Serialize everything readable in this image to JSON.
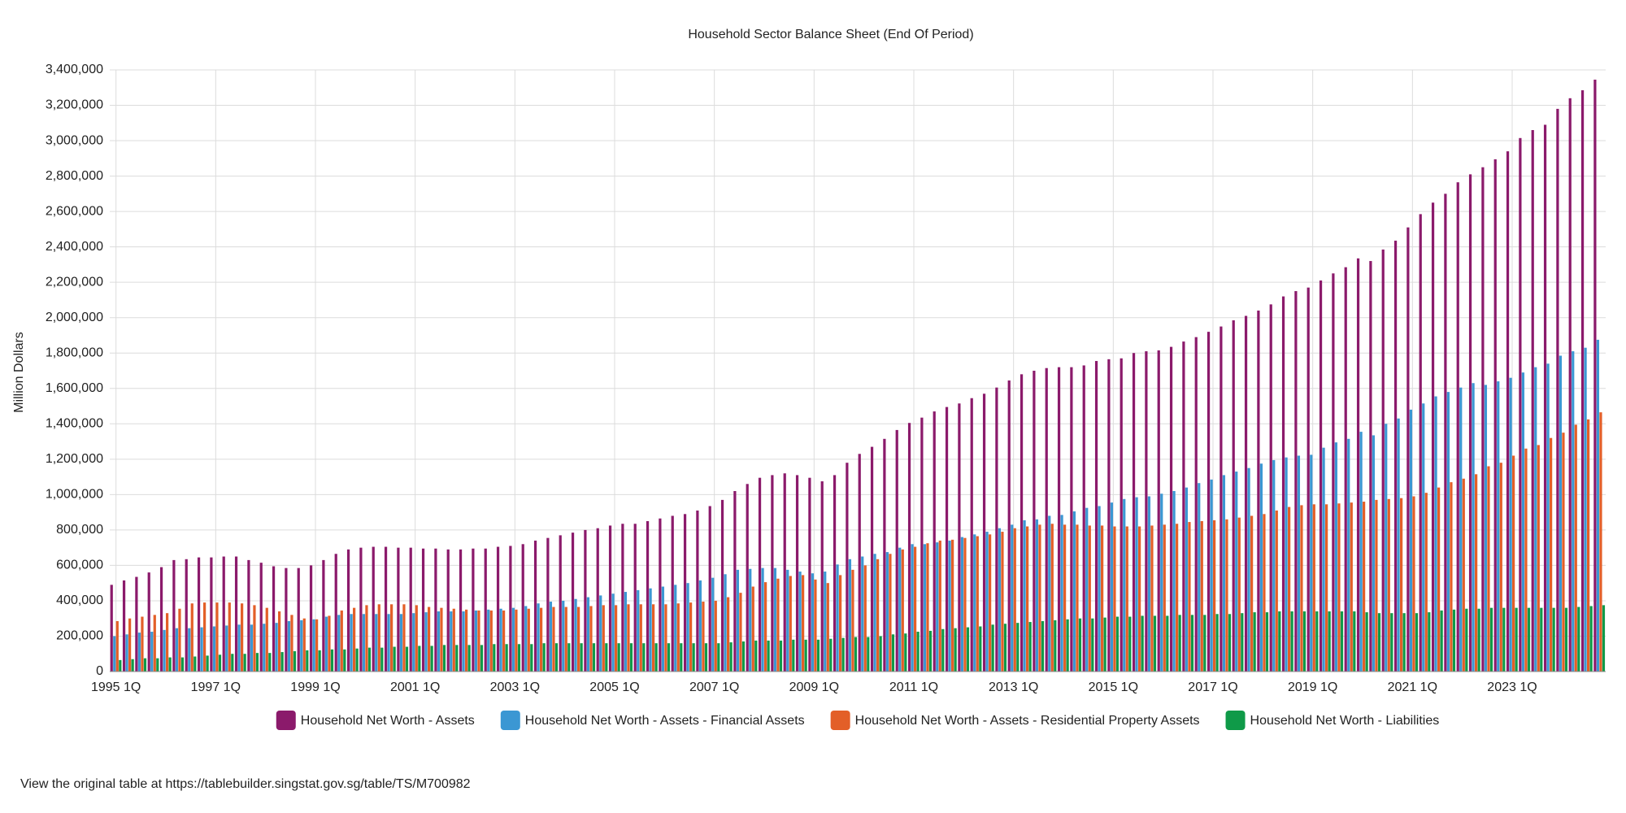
{
  "chart_data": {
    "type": "bar",
    "title": "Household Sector Balance Sheet (End Of Period)",
    "y_label": "Million Dollars",
    "source_note": "View the original table at https://tablebuilder.singstat.gov.sg/table/TS/M700982",
    "grid": true,
    "legend": "bottom",
    "categories": [
      "1995 1Q",
      null,
      null,
      null,
      null,
      null,
      null,
      null,
      "1997 1Q",
      null,
      null,
      null,
      null,
      null,
      null,
      null,
      "1999 1Q",
      null,
      null,
      null,
      null,
      null,
      null,
      null,
      "2001 1Q",
      null,
      null,
      null,
      null,
      null,
      null,
      null,
      "2003 1Q",
      null,
      null,
      null,
      null,
      null,
      null,
      null,
      "2005 1Q",
      null,
      null,
      null,
      null,
      null,
      null,
      null,
      "2007 1Q",
      null,
      null,
      null,
      null,
      null,
      null,
      null,
      "2009 1Q",
      null,
      null,
      null,
      null,
      null,
      null,
      null,
      "2011 1Q",
      null,
      null,
      null,
      null,
      null,
      null,
      null,
      "2013 1Q",
      null,
      null,
      null,
      null,
      null,
      null,
      null,
      "2015 1Q",
      null,
      null,
      null,
      null,
      null,
      null,
      null,
      "2017 1Q",
      null,
      null,
      null,
      null,
      null,
      null,
      null,
      "2019 1Q",
      null,
      null,
      null,
      null,
      null,
      null,
      null,
      "2021 1Q",
      null,
      null,
      null,
      null,
      null,
      null,
      null,
      "2023 1Q",
      null,
      null,
      null,
      null,
      null,
      null,
      null
    ],
    "ylim": [
      0,
      3400000
    ],
    "yticks": [
      0,
      {
        "value": 200000,
        "label": "200,000"
      },
      {
        "value": 400000,
        "label": "400,000"
      },
      {
        "value": 600000,
        "label": "600,000"
      },
      {
        "value": 800000,
        "label": "800,000"
      },
      {
        "value": 1000000,
        "label": "1,000,000"
      },
      {
        "value": 1200000,
        "label": "1,200,000"
      },
      {
        "value": 1400000,
        "label": "1,400,000"
      },
      {
        "value": 1600000,
        "label": "1,600,000"
      },
      {
        "value": 1800000,
        "label": "1,800,000"
      },
      {
        "value": 2000000,
        "label": "2,000,000"
      },
      {
        "value": 2200000,
        "label": "2,200,000"
      },
      {
        "value": 2400000,
        "label": "2,400,000"
      },
      {
        "value": 2600000,
        "label": "2,600,000"
      },
      {
        "value": 2800000,
        "label": "2,800,000"
      },
      {
        "value": 3000000,
        "label": "3,000,000"
      },
      {
        "value": 3200000,
        "label": "3,200,000"
      },
      {
        "value": 3400000,
        "label": "3,400,000"
      }
    ],
    "series": [
      {
        "name": "Household Net Worth - Assets",
        "color": "#8b1a6b",
        "values": [
          490000,
          515000,
          535000,
          560000,
          590000,
          630000,
          635000,
          645000,
          645000,
          650000,
          650000,
          630000,
          615000,
          595000,
          585000,
          585000,
          600000,
          630000,
          665000,
          690000,
          700000,
          705000,
          705000,
          700000,
          700000,
          695000,
          695000,
          690000,
          690000,
          695000,
          695000,
          705000,
          710000,
          720000,
          740000,
          755000,
          770000,
          785000,
          800000,
          810000,
          825000,
          835000,
          835000,
          850000,
          865000,
          880000,
          890000,
          910000,
          935000,
          970000,
          1020000,
          1060000,
          1095000,
          1110000,
          1120000,
          1110000,
          1095000,
          1075000,
          1110000,
          1180000,
          1230000,
          1270000,
          1315000,
          1365000,
          1405000,
          1435000,
          1470000,
          1495000,
          1515000,
          1545000,
          1570000,
          1605000,
          1645000,
          1680000,
          1700000,
          1715000,
          1720000,
          1720000,
          1730000,
          1755000,
          1765000,
          1770000,
          1800000,
          1810000,
          1815000,
          1835000,
          1865000,
          1890000,
          1920000,
          1950000,
          1985000,
          2010000,
          2040000,
          2075000,
          2120000,
          2150000,
          2170000,
          2210000,
          2250000,
          2285000,
          2335000,
          2320000,
          2385000,
          2435000,
          2510000,
          2585000,
          2650000,
          2700000,
          2765000,
          2810000,
          2850000,
          2895000,
          2940000,
          3015000,
          3060000,
          3090000,
          3180000,
          3240000,
          3285000,
          3345000
        ]
      },
      {
        "name": "Household Net Worth - Assets - Financial Assets",
        "color": "#3b97d3",
        "values": [
          200000,
          210000,
          220000,
          225000,
          235000,
          245000,
          245000,
          250000,
          255000,
          260000,
          265000,
          265000,
          270000,
          275000,
          285000,
          290000,
          295000,
          310000,
          320000,
          325000,
          325000,
          325000,
          325000,
          325000,
          330000,
          335000,
          340000,
          340000,
          340000,
          345000,
          350000,
          355000,
          360000,
          370000,
          385000,
          395000,
          400000,
          410000,
          420000,
          430000,
          440000,
          450000,
          460000,
          470000,
          480000,
          490000,
          500000,
          515000,
          530000,
          550000,
          575000,
          580000,
          585000,
          585000,
          575000,
          565000,
          555000,
          565000,
          605000,
          635000,
          650000,
          665000,
          675000,
          700000,
          720000,
          720000,
          730000,
          740000,
          760000,
          775000,
          790000,
          810000,
          830000,
          855000,
          860000,
          880000,
          885000,
          905000,
          925000,
          935000,
          955000,
          975000,
          985000,
          990000,
          1005000,
          1020000,
          1040000,
          1065000,
          1085000,
          1110000,
          1130000,
          1150000,
          1175000,
          1195000,
          1210000,
          1220000,
          1225000,
          1265000,
          1295000,
          1315000,
          1355000,
          1335000,
          1400000,
          1430000,
          1480000,
          1515000,
          1555000,
          1580000,
          1605000,
          1630000,
          1620000,
          1640000,
          1660000,
          1690000,
          1720000,
          1740000,
          1785000,
          1810000,
          1830000,
          1875000
        ]
      },
      {
        "name": "Household Net Worth - Assets - Residential Property Assets",
        "color": "#e35f28",
        "values": [
          285000,
          300000,
          310000,
          320000,
          330000,
          355000,
          385000,
          390000,
          390000,
          390000,
          385000,
          375000,
          360000,
          340000,
          320000,
          300000,
          295000,
          315000,
          345000,
          360000,
          375000,
          380000,
          380000,
          380000,
          375000,
          365000,
          360000,
          355000,
          350000,
          345000,
          345000,
          345000,
          350000,
          355000,
          360000,
          365000,
          365000,
          365000,
          370000,
          375000,
          375000,
          380000,
          380000,
          380000,
          380000,
          385000,
          390000,
          395000,
          400000,
          420000,
          445000,
          480000,
          505000,
          525000,
          540000,
          545000,
          520000,
          500000,
          545000,
          575000,
          600000,
          635000,
          665000,
          690000,
          705000,
          725000,
          740000,
          745000,
          755000,
          765000,
          775000,
          790000,
          810000,
          820000,
          830000,
          835000,
          830000,
          830000,
          825000,
          825000,
          820000,
          820000,
          820000,
          825000,
          830000,
          835000,
          845000,
          850000,
          855000,
          860000,
          870000,
          880000,
          890000,
          910000,
          930000,
          940000,
          945000,
          945000,
          950000,
          955000,
          960000,
          970000,
          975000,
          980000,
          990000,
          1010000,
          1040000,
          1070000,
          1090000,
          1115000,
          1160000,
          1180000,
          1220000,
          1260000,
          1280000,
          1320000,
          1350000,
          1395000,
          1425000,
          1465000
        ]
      },
      {
        "name": "Household Net Worth - Liabilities",
        "color": "#0f9a48",
        "values": [
          65000,
          70000,
          75000,
          75000,
          80000,
          80000,
          85000,
          90000,
          95000,
          100000,
          100000,
          105000,
          105000,
          110000,
          115000,
          120000,
          120000,
          125000,
          125000,
          130000,
          135000,
          135000,
          140000,
          140000,
          145000,
          145000,
          150000,
          150000,
          150000,
          150000,
          155000,
          155000,
          155000,
          155000,
          160000,
          160000,
          160000,
          160000,
          160000,
          160000,
          160000,
          160000,
          160000,
          160000,
          160000,
          160000,
          160000,
          160000,
          160000,
          165000,
          170000,
          175000,
          175000,
          175000,
          180000,
          180000,
          180000,
          185000,
          190000,
          195000,
          195000,
          200000,
          210000,
          215000,
          225000,
          230000,
          240000,
          245000,
          250000,
          255000,
          265000,
          270000,
          275000,
          280000,
          285000,
          290000,
          295000,
          300000,
          300000,
          305000,
          310000,
          310000,
          315000,
          315000,
          315000,
          320000,
          320000,
          320000,
          325000,
          325000,
          330000,
          335000,
          335000,
          340000,
          340000,
          340000,
          340000,
          340000,
          340000,
          340000,
          335000,
          330000,
          330000,
          330000,
          330000,
          335000,
          345000,
          350000,
          355000,
          355000,
          360000,
          360000,
          360000,
          360000,
          360000,
          360000,
          360000,
          365000,
          370000,
          375000
        ]
      }
    ]
  }
}
